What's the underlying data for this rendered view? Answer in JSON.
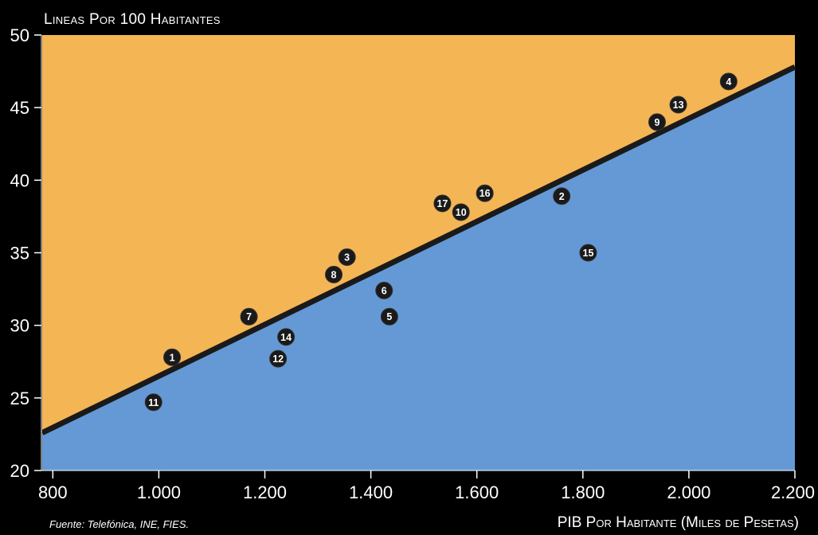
{
  "chart_data": {
    "type": "scatter",
    "ylabel": "Lineas Por 100 Habitantes",
    "xlabel": "PIB Por Habitante (Miles de Pesetas)",
    "source": "Fuente: Telefónica, INE, FIES.",
    "xlim": [
      780,
      2200
    ],
    "ylim": [
      20,
      50
    ],
    "x_ticks": [
      800,
      1000,
      1200,
      1400,
      1600,
      1800,
      2000,
      2200
    ],
    "x_tick_labels": [
      "800",
      "1.000",
      "1.200",
      "1.400",
      "1.600",
      "1.800",
      "2.000",
      "2.200"
    ],
    "y_ticks": [
      20,
      25,
      30,
      35,
      40,
      45,
      50
    ],
    "y_tick_labels": [
      "20",
      "25",
      "30",
      "35",
      "40",
      "45",
      "50"
    ],
    "regression_line": {
      "x": [
        780,
        2200
      ],
      "y": [
        22.6,
        47.8
      ]
    },
    "points": [
      {
        "label": "1",
        "x": 1025,
        "y": 27.8
      },
      {
        "label": "2",
        "x": 1760,
        "y": 38.9
      },
      {
        "label": "3",
        "x": 1355,
        "y": 34.7
      },
      {
        "label": "4",
        "x": 2075,
        "y": 46.8
      },
      {
        "label": "5",
        "x": 1435,
        "y": 30.6
      },
      {
        "label": "6",
        "x": 1425,
        "y": 32.4
      },
      {
        "label": "7",
        "x": 1170,
        "y": 30.6
      },
      {
        "label": "8",
        "x": 1330,
        "y": 33.5
      },
      {
        "label": "9",
        "x": 1940,
        "y": 44.0
      },
      {
        "label": "10",
        "x": 1570,
        "y": 37.8
      },
      {
        "label": "11",
        "x": 990,
        "y": 24.7
      },
      {
        "label": "12",
        "x": 1225,
        "y": 27.7
      },
      {
        "label": "13",
        "x": 1980,
        "y": 45.2
      },
      {
        "label": "14",
        "x": 1240,
        "y": 29.2
      },
      {
        "label": "15",
        "x": 1810,
        "y": 35.0
      },
      {
        "label": "16",
        "x": 1615,
        "y": 39.1
      },
      {
        "label": "17",
        "x": 1535,
        "y": 38.4
      }
    ],
    "colors": {
      "above": "#f4b555",
      "below": "#6499d6",
      "line": "#1a1a1a",
      "marker": "#1a1a1a",
      "text": "#ffffff"
    }
  }
}
